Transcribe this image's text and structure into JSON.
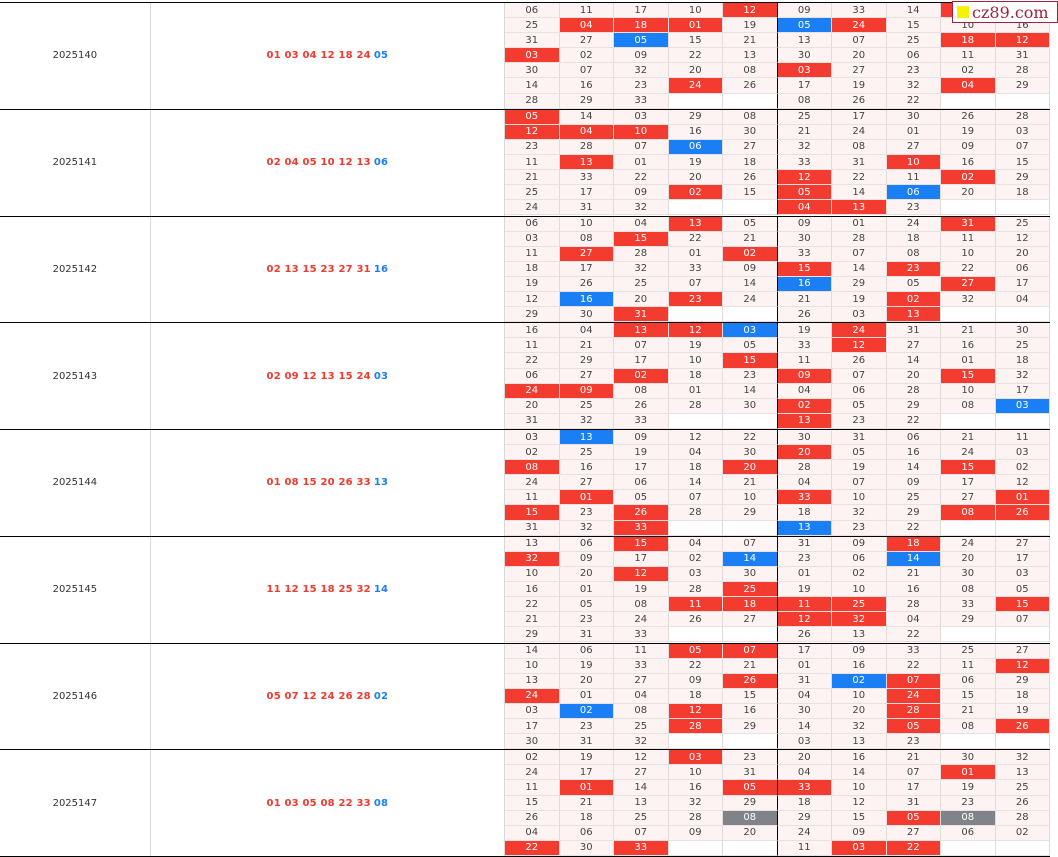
{
  "watermark": "cz89.com",
  "colors": {
    "hit_red": "#f33b30",
    "hit_blue": "#1a7ef5",
    "repeat_gray": "#808488"
  },
  "rows": [
    {
      "period": "2025140",
      "reds": "01 03 04 12 18 24",
      "blue": "05",
      "grid": [
        [
          "06",
          "11",
          "17",
          "10",
          "12r",
          "09",
          "33",
          "14",
          "r",
          ""
        ],
        [
          "25",
          "04r",
          "18r",
          "01r",
          "19",
          "05b",
          "24r",
          "15",
          "10",
          "16"
        ],
        [
          "31",
          "27",
          "05b",
          "15",
          "21",
          "13",
          "07",
          "25",
          "18r",
          "12r"
        ],
        [
          "03r",
          "02",
          "09",
          "22",
          "13",
          "30",
          "20",
          "06",
          "11",
          "31"
        ],
        [
          "30",
          "07",
          "32",
          "20",
          "08",
          "03r",
          "27",
          "23",
          "02",
          "28"
        ],
        [
          "14",
          "16",
          "23",
          "24r",
          "26",
          "17",
          "19",
          "32",
          "04r",
          "29"
        ],
        [
          "28",
          "29",
          "33",
          "",
          "",
          "08",
          "26",
          "22",
          "",
          ""
        ]
      ]
    },
    {
      "period": "2025141",
      "reds": "02 04 05 10 12 13",
      "blue": "06",
      "grid": [
        [
          "05r",
          "14",
          "03",
          "29",
          "08",
          "25",
          "17",
          "30",
          "26",
          "28"
        ],
        [
          "12r",
          "04r",
          "10r",
          "16",
          "30",
          "21",
          "24",
          "01",
          "19",
          "03"
        ],
        [
          "23",
          "28",
          "07",
          "06b",
          "27",
          "32",
          "08",
          "27",
          "09",
          "07"
        ],
        [
          "11",
          "13r",
          "01",
          "19",
          "18",
          "33",
          "31",
          "10r",
          "16",
          "15"
        ],
        [
          "21",
          "33",
          "22",
          "20",
          "26",
          "12r",
          "22",
          "11",
          "02r",
          "29"
        ],
        [
          "25",
          "17",
          "09",
          "02r",
          "15",
          "05r",
          "14",
          "06b",
          "20",
          "18"
        ],
        [
          "24",
          "31",
          "32",
          "",
          "",
          "04r",
          "13r",
          "23",
          "",
          ""
        ]
      ]
    },
    {
      "period": "2025142",
      "reds": "02 13 15 23 27 31",
      "blue": "16",
      "grid": [
        [
          "06",
          "10",
          "04",
          "13r",
          "05",
          "09",
          "01",
          "24",
          "31r",
          "25"
        ],
        [
          "03",
          "08",
          "15r",
          "22",
          "21",
          "30",
          "28",
          "18",
          "11",
          "12"
        ],
        [
          "11",
          "27r",
          "28",
          "01",
          "02r",
          "33",
          "07",
          "08",
          "10",
          "20"
        ],
        [
          "18",
          "17",
          "32",
          "33",
          "09",
          "15r",
          "14",
          "23r",
          "22",
          "06"
        ],
        [
          "19",
          "26",
          "25",
          "07",
          "14",
          "16b",
          "29",
          "05",
          "27r",
          "17"
        ],
        [
          "12",
          "16b",
          "20",
          "23r",
          "24",
          "21",
          "19",
          "02r",
          "32",
          "04"
        ],
        [
          "29",
          "30",
          "31r",
          "",
          "",
          "26",
          "03",
          "13r",
          "",
          ""
        ]
      ]
    },
    {
      "period": "2025143",
      "reds": "02 09 12 13 15 24",
      "blue": "03",
      "grid": [
        [
          "16",
          "04",
          "13r",
          "12r",
          "03b",
          "19",
          "24r",
          "31",
          "21",
          "30"
        ],
        [
          "11",
          "21",
          "07",
          "19",
          "05",
          "33",
          "12r",
          "27",
          "16",
          "25"
        ],
        [
          "22",
          "29",
          "17",
          "10",
          "15r",
          "11",
          "26",
          "14",
          "01",
          "18"
        ],
        [
          "06",
          "27",
          "02r",
          "18",
          "23",
          "09r",
          "07",
          "20",
          "15r",
          "32"
        ],
        [
          "24r",
          "09r",
          "08",
          "01",
          "14",
          "04",
          "06",
          "28",
          "10",
          "17"
        ],
        [
          "20",
          "25",
          "26",
          "28",
          "30",
          "02r",
          "05",
          "29",
          "08",
          "03b"
        ],
        [
          "31",
          "32",
          "33",
          "",
          "",
          "13r",
          "23",
          "22",
          "",
          ""
        ]
      ]
    },
    {
      "period": "2025144",
      "reds": "01 08 15 20 26 33",
      "blue": "13",
      "grid": [
        [
          "03",
          "13b",
          "09",
          "12",
          "22",
          "30",
          "31",
          "06",
          "21",
          "11"
        ],
        [
          "02",
          "25",
          "19",
          "04",
          "30",
          "20r",
          "05",
          "16",
          "24",
          "03"
        ],
        [
          "08r",
          "16",
          "17",
          "18",
          "20r",
          "28",
          "19",
          "14",
          "15r",
          "02"
        ],
        [
          "24",
          "27",
          "06",
          "14",
          "21",
          "04",
          "07",
          "09",
          "17",
          "12"
        ],
        [
          "11",
          "01r",
          "05",
          "07",
          "10",
          "33r",
          "10",
          "25",
          "27",
          "01r"
        ],
        [
          "15r",
          "23",
          "26r",
          "28",
          "29",
          "18",
          "32",
          "29",
          "08r",
          "26r"
        ],
        [
          "31",
          "32",
          "33r",
          "",
          "",
          "13b",
          "23",
          "22",
          "",
          ""
        ]
      ]
    },
    {
      "period": "2025145",
      "reds": "11 12 15 18 25 32",
      "blue": "14",
      "grid": [
        [
          "13",
          "06",
          "15r",
          "04",
          "07",
          "31",
          "09",
          "18r",
          "24",
          "27"
        ],
        [
          "32r",
          "09",
          "17",
          "02",
          "14b",
          "23",
          "06",
          "14b",
          "20",
          "17"
        ],
        [
          "10",
          "20",
          "12r",
          "03",
          "30",
          "01",
          "02",
          "21",
          "30",
          "03"
        ],
        [
          "16",
          "01",
          "19",
          "28",
          "25r",
          "19",
          "10",
          "16",
          "08",
          "05"
        ],
        [
          "22",
          "05",
          "08",
          "11r",
          "18r",
          "11r",
          "25r",
          "28",
          "33",
          "15r"
        ],
        [
          "21",
          "23",
          "24",
          "26",
          "27",
          "12r",
          "32r",
          "04",
          "29",
          "07"
        ],
        [
          "29",
          "31",
          "33",
          "",
          "",
          "26",
          "13",
          "22",
          "",
          ""
        ]
      ]
    },
    {
      "period": "2025146",
      "reds": "05 07 12 24 26 28",
      "blue": "02",
      "grid": [
        [
          "14",
          "06",
          "11",
          "05r",
          "07r",
          "17",
          "09",
          "33",
          "25",
          "27"
        ],
        [
          "10",
          "19",
          "33",
          "22",
          "21",
          "01",
          "16",
          "22",
          "11",
          "12r"
        ],
        [
          "13",
          "20",
          "27",
          "09",
          "26r",
          "31",
          "02b",
          "07r",
          "06",
          "29"
        ],
        [
          "24r",
          "01",
          "04",
          "18",
          "15",
          "04",
          "10",
          "24r",
          "15",
          "18"
        ],
        [
          "03",
          "02b",
          "08",
          "12r",
          "16",
          "30",
          "20",
          "28r",
          "21",
          "19"
        ],
        [
          "17",
          "23",
          "25",
          "28r",
          "29",
          "14",
          "32",
          "05r",
          "08",
          "26r"
        ],
        [
          "30",
          "31",
          "32",
          "",
          "",
          "03",
          "13",
          "23",
          "",
          ""
        ]
      ]
    },
    {
      "period": "2025147",
      "reds": "01 03 05 08 22 33",
      "blue": "08",
      "grid": [
        [
          "02",
          "19",
          "12",
          "03r",
          "23",
          "20",
          "16",
          "21",
          "30",
          "32"
        ],
        [
          "24",
          "17",
          "27",
          "10",
          "31",
          "04",
          "14",
          "07",
          "01r",
          "13"
        ],
        [
          "11",
          "01r",
          "14",
          "16",
          "05r",
          "33r",
          "10",
          "17",
          "19",
          "25"
        ],
        [
          "15",
          "21",
          "13",
          "32",
          "29",
          "18",
          "12",
          "31",
          "23",
          "26"
        ],
        [
          "26",
          "18",
          "25",
          "28",
          "08g",
          "29",
          "15",
          "05r",
          "08g",
          "28"
        ],
        [
          "04",
          "06",
          "07",
          "09",
          "20",
          "24",
          "09",
          "27",
          "06",
          "02"
        ],
        [
          "22r",
          "30",
          "33r",
          "",
          "",
          "11",
          "03r",
          "22r",
          "",
          ""
        ]
      ]
    }
  ]
}
